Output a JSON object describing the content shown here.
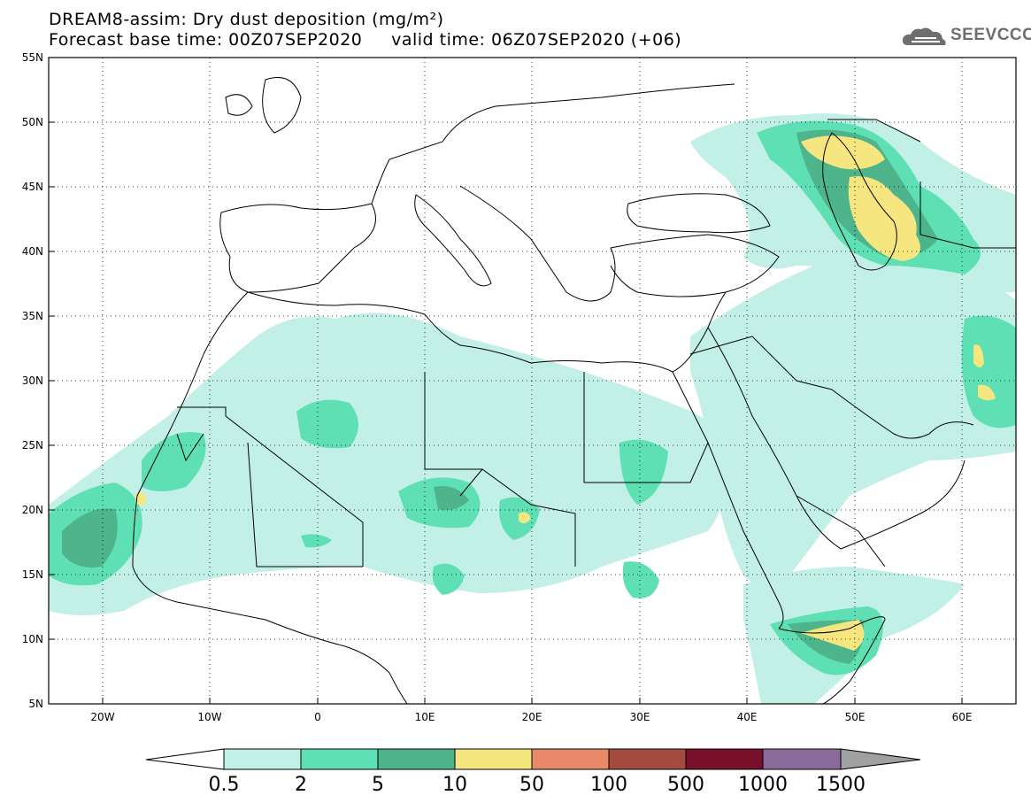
{
  "header": {
    "line1": "DREAM8-assim: Dry dust deposition (mg/m²)",
    "line2": "Forecast base time: 00Z07SEP2020     valid time: 06Z07SEP2020 (+06)"
  },
  "logo": {
    "text": "SEEVCCC",
    "icon": "cloud-icon"
  },
  "axes": {
    "lat_labels": [
      "55N",
      "50N",
      "45N",
      "40N",
      "35N",
      "30N",
      "25N",
      "20N",
      "15N",
      "10N",
      "5N"
    ],
    "lon_labels": [
      "20W",
      "10W",
      "0",
      "10E",
      "20E",
      "30E",
      "40E",
      "50E",
      "60E"
    ]
  },
  "colorbar": {
    "levels": [
      "0.5",
      "2",
      "5",
      "10",
      "50",
      "100",
      "500",
      "1000",
      "1500"
    ],
    "colors": [
      "#c2f0e6",
      "#5ee0b4",
      "#4db48c",
      "#f5e680",
      "#e8896a",
      "#a54a3e",
      "#7a0f2a",
      "#8a6a9a",
      "#a0a0a0"
    ]
  },
  "field_colors": {
    "light": "#c2f0e6",
    "mid": "#5ee0b4",
    "dark": "#4db48c",
    "yellow": "#f5e680"
  }
}
